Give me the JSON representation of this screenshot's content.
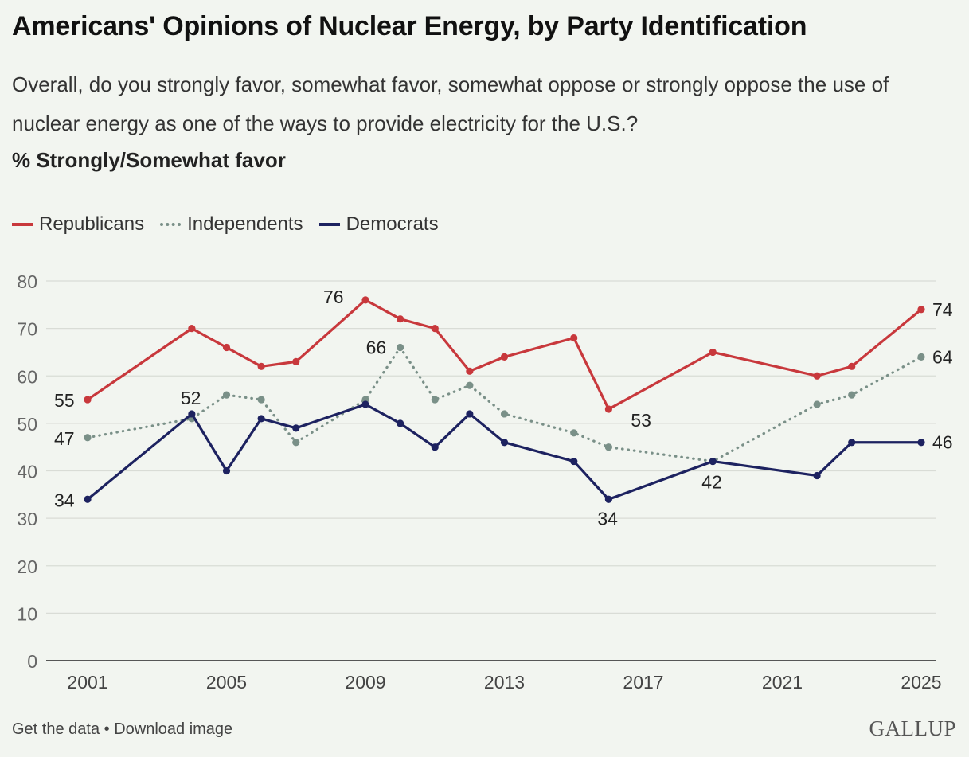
{
  "title": "Americans' Opinions of Nuclear Energy, by Party Identification",
  "subtitle": "Overall, do you strongly favor, somewhat favor, somewhat oppose or strongly oppose the use of nuclear energy as one of the ways to provide electricity for the U.S.?",
  "measure_label": "% Strongly/Somewhat favor",
  "footer": {
    "get_data": "Get the data",
    "separator": " • ",
    "download": "Download image",
    "brand": "GALLUP"
  },
  "colors": {
    "republicans": "#c8383c",
    "independents": "#7a9088",
    "democrats": "#1d2260",
    "grid": "#d9dcd6",
    "axis": "#222222"
  },
  "chart_data": {
    "type": "line",
    "ylim": [
      0,
      80
    ],
    "yticks": [
      0,
      10,
      20,
      30,
      40,
      50,
      60,
      70,
      80
    ],
    "xlim": [
      2001,
      2025
    ],
    "xticks": [
      2001,
      2005,
      2009,
      2013,
      2017,
      2021,
      2025
    ],
    "grid": true,
    "legend_position": "top-left",
    "series": [
      {
        "name": "Republicans",
        "style": "solid",
        "color": "#c8383c",
        "points": [
          [
            2001,
            55
          ],
          [
            2004,
            70
          ],
          [
            2005,
            66
          ],
          [
            2006,
            62
          ],
          [
            2007,
            63
          ],
          [
            2009,
            76
          ],
          [
            2010,
            72
          ],
          [
            2011,
            70
          ],
          [
            2012,
            61
          ],
          [
            2013,
            64
          ],
          [
            2015,
            68
          ],
          [
            2016,
            53
          ],
          [
            2019,
            65
          ],
          [
            2022,
            60
          ],
          [
            2023,
            62
          ],
          [
            2025,
            74
          ]
        ]
      },
      {
        "name": "Independents",
        "style": "dotted",
        "color": "#7a9088",
        "points": [
          [
            2001,
            47
          ],
          [
            2004,
            51
          ],
          [
            2005,
            56
          ],
          [
            2006,
            55
          ],
          [
            2007,
            46
          ],
          [
            2009,
            55
          ],
          [
            2010,
            66
          ],
          [
            2011,
            55
          ],
          [
            2012,
            58
          ],
          [
            2013,
            52
          ],
          [
            2015,
            48
          ],
          [
            2016,
            45
          ],
          [
            2019,
            42
          ],
          [
            2022,
            54
          ],
          [
            2023,
            56
          ],
          [
            2025,
            64
          ]
        ]
      },
      {
        "name": "Democrats",
        "style": "solid",
        "color": "#1d2260",
        "points": [
          [
            2001,
            34
          ],
          [
            2004,
            52
          ],
          [
            2005,
            40
          ],
          [
            2006,
            51
          ],
          [
            2007,
            49
          ],
          [
            2009,
            54
          ],
          [
            2010,
            50
          ],
          [
            2011,
            45
          ],
          [
            2012,
            52
          ],
          [
            2013,
            46
          ],
          [
            2015,
            42
          ],
          [
            2016,
            34
          ],
          [
            2019,
            42
          ],
          [
            2022,
            39
          ],
          [
            2023,
            46
          ],
          [
            2025,
            46
          ]
        ]
      }
    ],
    "annotations": [
      {
        "x": 2001,
        "y": 55,
        "text": "55"
      },
      {
        "x": 2001,
        "y": 47,
        "text": "47"
      },
      {
        "x": 2001,
        "y": 34,
        "text": "34"
      },
      {
        "x": 2004,
        "y": 52,
        "text": "52"
      },
      {
        "x": 2009,
        "y": 76,
        "text": "76"
      },
      {
        "x": 2010,
        "y": 66,
        "text": "66"
      },
      {
        "x": 2016,
        "y": 53,
        "text": "53"
      },
      {
        "x": 2016,
        "y": 34,
        "text": "34"
      },
      {
        "x": 2019,
        "y": 42,
        "text": "42"
      },
      {
        "x": 2025,
        "y": 74,
        "text": "74"
      },
      {
        "x": 2025,
        "y": 64,
        "text": "64"
      },
      {
        "x": 2025,
        "y": 46,
        "text": "46"
      }
    ]
  }
}
